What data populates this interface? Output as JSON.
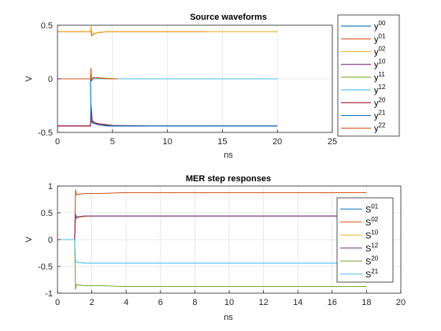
{
  "colors": {
    "c1": "#0072BD",
    "c2": "#D95319",
    "c3": "#EDB120",
    "c4": "#7E2F8E",
    "c5": "#77AC30",
    "c6": "#4DBEEE",
    "c7": "#A2142F"
  },
  "chart_data": [
    {
      "type": "line",
      "title": "Source waveforms",
      "xlabel": "ns",
      "ylabel": "V",
      "xlim": [
        0,
        25
      ],
      "ylim": [
        -0.5,
        0.5
      ],
      "xticks": [
        0,
        5,
        10,
        15,
        20,
        25
      ],
      "yticks": [
        -0.5,
        0,
        0.5
      ],
      "grid": true,
      "legend_position": "top-right",
      "series": [
        {
          "name": "y",
          "sup": "00",
          "color": "#0072BD",
          "x": [
            0,
            3.0,
            3.05,
            3.1,
            3.2,
            3.4,
            4,
            20
          ],
          "y": [
            0,
            0,
            0.02,
            -0.01,
            0.005,
            0,
            0,
            0
          ]
        },
        {
          "name": "y",
          "sup": "01",
          "color": "#D95319",
          "x": [
            0,
            3.0,
            3.05,
            3.1,
            3.3,
            3.6,
            4.5,
            13.5
          ],
          "y": [
            0.44,
            0.44,
            0.47,
            0.4,
            0.42,
            0.43,
            0.44,
            0.44
          ]
        },
        {
          "name": "y",
          "sup": "02",
          "color": "#EDB120",
          "x": [
            0,
            3.0,
            3.05,
            3.15,
            3.4,
            3.8,
            4.5,
            20
          ],
          "y": [
            0.44,
            0.44,
            0.49,
            0.41,
            0.42,
            0.435,
            0.44,
            0.44
          ]
        },
        {
          "name": "y",
          "sup": "10",
          "color": "#7E2F8E",
          "x": [
            0,
            3.0,
            3.05,
            3.15,
            3.4,
            3.8,
            4.5,
            20
          ],
          "y": [
            -0.44,
            -0.44,
            -0.25,
            -0.4,
            -0.41,
            -0.43,
            -0.44,
            -0.44
          ]
        },
        {
          "name": "y",
          "sup": "11",
          "color": "#77AC30",
          "x": [
            0,
            3.0,
            3.05,
            3.1,
            3.2,
            3.5,
            5.5
          ],
          "y": [
            0,
            0,
            0.06,
            -0.02,
            0.01,
            0.01,
            0
          ]
        },
        {
          "name": "y",
          "sup": "12",
          "color": "#4DBEEE",
          "x": [
            0,
            3.0,
            3.05,
            3.1,
            3.2,
            3.4,
            20
          ],
          "y": [
            0,
            0,
            0.04,
            -0.02,
            0.01,
            0,
            0
          ]
        },
        {
          "name": "y",
          "sup": "20",
          "color": "#A2142F",
          "x": [
            0,
            3.0,
            3.05,
            3.15,
            3.4,
            3.8,
            5,
            8
          ],
          "y": [
            -0.44,
            -0.44,
            -0.26,
            -0.39,
            -0.41,
            -0.42,
            -0.435,
            -0.44
          ]
        },
        {
          "name": "y",
          "sup": "21",
          "color": "#0072BD",
          "x": [
            0,
            3.0,
            3.05,
            3.15,
            3.4,
            3.8,
            5,
            20
          ],
          "y": [
            0,
            0,
            -0.4,
            -0.41,
            -0.42,
            -0.43,
            -0.44,
            -0.44
          ]
        },
        {
          "name": "y",
          "sup": "22",
          "color": "#D95319",
          "x": [
            0,
            3.0,
            3.05,
            3.1,
            3.3,
            3.6,
            4.5,
            5.5
          ],
          "y": [
            0,
            0,
            0.1,
            -0.02,
            0.01,
            0.01,
            0,
            0
          ]
        }
      ]
    },
    {
      "type": "line",
      "title": "MER step responses",
      "xlabel": "ns",
      "ylabel": "V",
      "xlim": [
        0,
        20
      ],
      "ylim": [
        -1,
        1
      ],
      "xticks": [
        0,
        2,
        4,
        6,
        8,
        10,
        12,
        14,
        16,
        18,
        20
      ],
      "yticks": [
        -1,
        -0.5,
        0,
        0.5,
        1
      ],
      "grid": true,
      "legend_position": "right",
      "series": [
        {
          "name": "S",
          "sup": "01",
          "color": "#0072BD",
          "x": [
            0,
            1.0,
            1.05,
            1.1,
            1.3,
            1.6,
            2.0,
            18
          ],
          "y": [
            0,
            0,
            0.48,
            0.4,
            0.42,
            0.44,
            0.44,
            0.44
          ]
        },
        {
          "name": "S",
          "sup": "02",
          "color": "#D95319",
          "x": [
            0,
            1.0,
            1.05,
            1.1,
            1.3,
            1.6,
            2.5,
            3.8,
            18
          ],
          "y": [
            0,
            0,
            0.93,
            0.84,
            0.85,
            0.86,
            0.86,
            0.875,
            0.875
          ]
        },
        {
          "name": "S",
          "sup": "10",
          "color": "#EDB120",
          "x": [
            0,
            1.0,
            1.05,
            1.1,
            1.3,
            1.6,
            2.0,
            18
          ],
          "y": [
            0,
            0,
            0.45,
            0.41,
            0.42,
            0.43,
            0.44,
            0.44
          ]
        },
        {
          "name": "S",
          "sup": "12",
          "color": "#7E2F8E",
          "x": [
            0,
            1.0,
            1.05,
            1.1,
            1.3,
            1.6,
            2.0,
            18
          ],
          "y": [
            0,
            0,
            0.46,
            0.42,
            0.43,
            0.44,
            0.44,
            0.44
          ]
        },
        {
          "name": "S",
          "sup": "20",
          "color": "#77AC30",
          "x": [
            0,
            1.0,
            1.05,
            1.1,
            1.3,
            1.6,
            2.5,
            3.8,
            18
          ],
          "y": [
            0,
            0,
            -0.93,
            -0.84,
            -0.85,
            -0.86,
            -0.86,
            -0.875,
            -0.875
          ]
        },
        {
          "name": "S",
          "sup": "21",
          "color": "#4DBEEE",
          "x": [
            0,
            1.0,
            1.05,
            1.1,
            1.3,
            1.6,
            2.0,
            18
          ],
          "y": [
            0,
            0,
            -0.4,
            -0.42,
            -0.43,
            -0.44,
            -0.44,
            -0.44
          ]
        }
      ]
    }
  ]
}
